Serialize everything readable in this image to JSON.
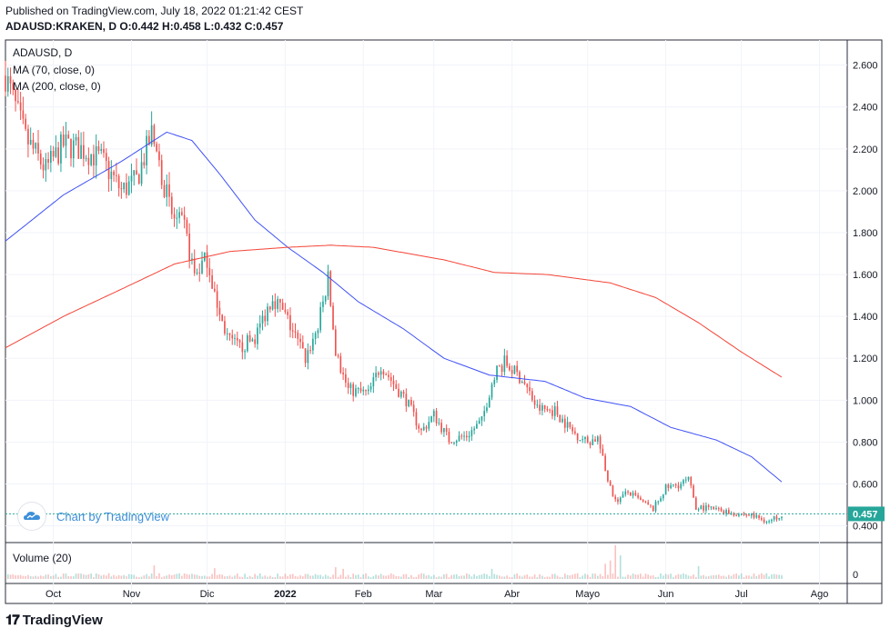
{
  "header": {
    "published": "Published on TradingView.com, July 18, 2022 01:21:42 CEST",
    "ohlc": "ADAUSD:KRAKEN, D  O:0.442 H:0.458 L:0.432 C:0.457"
  },
  "legend": {
    "symbol": "ADAUSD, D",
    "ma70": "MA (70, close, 0)",
    "ma200": "MA (200, close, 0)",
    "volume": "Volume (20)"
  },
  "watermark": "Chart by TradingView",
  "footer_logo": "TradingView",
  "colors": {
    "up": "#26a69a",
    "down": "#ef5350",
    "ma70": "#3f51f5",
    "ma200": "#f44336",
    "grid": "#f0f3fa",
    "axis_text": "#131722",
    "price_tag": "#26a69a"
  },
  "chart_data": {
    "type": "candlestick",
    "symbol": "ADAUSD",
    "interval": "D",
    "last_price": "0.457",
    "y_axis": {
      "ticks": [
        "2.600",
        "2.400",
        "2.200",
        "2.000",
        "1.800",
        "1.600",
        "1.400",
        "1.200",
        "1.000",
        "0.800",
        "0.600",
        "0.400"
      ],
      "ylim": [
        0.32,
        2.72
      ]
    },
    "x_axis": {
      "labels": [
        "Oct",
        "Nov",
        "Dic",
        "2022",
        "Feb",
        "Mar",
        "Abr",
        "Mayo",
        "Jun",
        "Jul",
        "Ago"
      ],
      "dates": [
        "2021-10-01",
        "2021-11-01",
        "2021-12-01",
        "2022-01-01",
        "2022-02-01",
        "2022-03-01",
        "2022-04-01",
        "2022-05-01",
        "2022-06-01",
        "2022-07-01",
        "2022-08-01"
      ],
      "range": [
        "2021-09-12",
        "2022-08-12"
      ]
    },
    "volume_axis": {
      "ticks": [
        "0"
      ]
    },
    "close_anchors": [
      [
        "2021-09-12",
        2.55
      ],
      [
        "2021-09-20",
        2.25
      ],
      [
        "2021-09-28",
        2.1
      ],
      [
        "2021-10-05",
        2.22
      ],
      [
        "2021-10-12",
        2.2
      ],
      [
        "2021-10-20",
        2.15
      ],
      [
        "2021-10-28",
        2.0
      ],
      [
        "2021-11-03",
        2.05
      ],
      [
        "2021-11-09",
        2.27
      ],
      [
        "2021-11-13",
        2.08
      ],
      [
        "2021-11-17",
        1.88
      ],
      [
        "2021-11-22",
        1.82
      ],
      [
        "2021-11-26",
        1.6
      ],
      [
        "2021-12-01",
        1.68
      ],
      [
        "2021-12-06",
        1.4
      ],
      [
        "2021-12-10",
        1.28
      ],
      [
        "2021-12-14",
        1.25
      ],
      [
        "2021-12-20",
        1.3
      ],
      [
        "2021-12-27",
        1.5
      ],
      [
        "2022-01-02",
        1.38
      ],
      [
        "2022-01-09",
        1.2
      ],
      [
        "2022-01-14",
        1.35
      ],
      [
        "2022-01-18",
        1.58
      ],
      [
        "2022-01-21",
        1.22
      ],
      [
        "2022-01-26",
        1.05
      ],
      [
        "2022-02-03",
        1.03
      ],
      [
        "2022-02-08",
        1.17
      ],
      [
        "2022-02-14",
        1.06
      ],
      [
        "2022-02-18",
        1.0
      ],
      [
        "2022-02-24",
        0.85
      ],
      [
        "2022-03-01",
        0.93
      ],
      [
        "2022-03-07",
        0.81
      ],
      [
        "2022-03-14",
        0.83
      ],
      [
        "2022-03-20",
        0.9
      ],
      [
        "2022-03-25",
        1.13
      ],
      [
        "2022-03-29",
        1.18
      ],
      [
        "2022-04-05",
        1.1
      ],
      [
        "2022-04-11",
        0.96
      ],
      [
        "2022-04-18",
        0.95
      ],
      [
        "2022-04-25",
        0.85
      ],
      [
        "2022-05-01",
        0.8
      ],
      [
        "2022-05-05",
        0.82
      ],
      [
        "2022-05-09",
        0.61
      ],
      [
        "2022-05-12",
        0.52
      ],
      [
        "2022-05-17",
        0.56
      ],
      [
        "2022-05-23",
        0.51
      ],
      [
        "2022-05-27",
        0.48
      ],
      [
        "2022-06-01",
        0.58
      ],
      [
        "2022-06-07",
        0.6
      ],
      [
        "2022-06-10",
        0.62
      ],
      [
        "2022-06-13",
        0.49
      ],
      [
        "2022-06-20",
        0.48
      ],
      [
        "2022-06-28",
        0.46
      ],
      [
        "2022-07-05",
        0.45
      ],
      [
        "2022-07-12",
        0.42
      ],
      [
        "2022-07-17",
        0.457
      ]
    ],
    "ma70_anchors": [
      [
        "2021-09-12",
        1.76
      ],
      [
        "2021-10-05",
        1.98
      ],
      [
        "2021-10-28",
        2.14
      ],
      [
        "2021-11-15",
        2.28
      ],
      [
        "2021-11-25",
        2.24
      ],
      [
        "2021-12-06",
        2.08
      ],
      [
        "2021-12-20",
        1.86
      ],
      [
        "2022-01-02",
        1.73
      ],
      [
        "2022-01-16",
        1.61
      ],
      [
        "2022-01-30",
        1.47
      ],
      [
        "2022-02-17",
        1.34
      ],
      [
        "2022-03-05",
        1.2
      ],
      [
        "2022-03-23",
        1.12
      ],
      [
        "2022-04-14",
        1.09
      ],
      [
        "2022-04-30",
        1.01
      ],
      [
        "2022-05-18",
        0.97
      ],
      [
        "2022-06-03",
        0.87
      ],
      [
        "2022-06-21",
        0.81
      ],
      [
        "2022-07-05",
        0.73
      ],
      [
        "2022-07-17",
        0.61
      ]
    ],
    "ma200_anchors": [
      [
        "2021-09-12",
        1.25
      ],
      [
        "2021-10-05",
        1.4
      ],
      [
        "2021-10-28",
        1.53
      ],
      [
        "2021-11-18",
        1.65
      ],
      [
        "2021-12-10",
        1.71
      ],
      [
        "2022-01-02",
        1.73
      ],
      [
        "2022-01-19",
        1.74
      ],
      [
        "2022-02-05",
        1.73
      ],
      [
        "2022-03-05",
        1.67
      ],
      [
        "2022-03-25",
        1.61
      ],
      [
        "2022-04-15",
        1.6
      ],
      [
        "2022-05-10",
        1.56
      ],
      [
        "2022-05-28",
        1.49
      ],
      [
        "2022-06-14",
        1.37
      ],
      [
        "2022-07-01",
        1.23
      ],
      [
        "2022-07-17",
        1.11
      ]
    ],
    "volume_spikes": [
      [
        "2022-05-10",
        0.55
      ],
      [
        "2022-05-12",
        1.0
      ],
      [
        "2022-05-14",
        0.7
      ],
      [
        "2022-05-08",
        0.45
      ],
      [
        "2022-01-21",
        0.35
      ],
      [
        "2022-01-24",
        0.3
      ],
      [
        "2022-03-24",
        0.3
      ],
      [
        "2022-06-14",
        0.38
      ],
      [
        "2021-11-10",
        0.4
      ],
      [
        "2021-12-04",
        0.32
      ]
    ]
  }
}
